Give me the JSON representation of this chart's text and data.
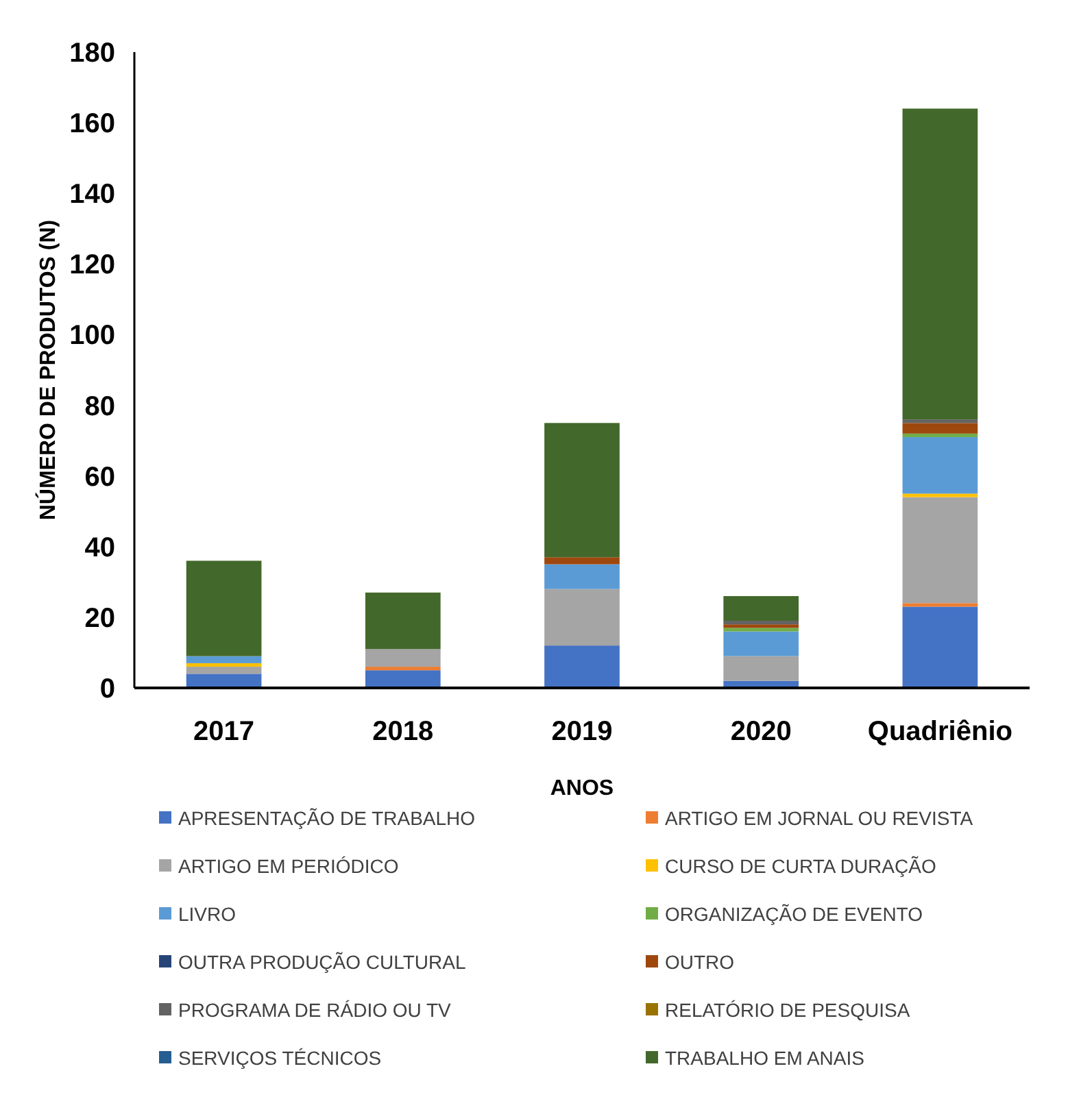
{
  "chart_data": {
    "type": "bar",
    "stacked": true,
    "xlabel": "ANOS",
    "ylabel": "NÚMERO DE PRODUTOS (N)",
    "categories": [
      "2017",
      "2018",
      "2019",
      "2020",
      "Quadriênio"
    ],
    "ylim": [
      0,
      180
    ],
    "yticks": [
      0,
      20,
      40,
      60,
      80,
      100,
      120,
      140,
      160,
      180
    ],
    "grid": false,
    "legend": "bottom",
    "series": [
      {
        "name": "APRESENTAÇÃO DE TRABALHO",
        "color": "#4472c4",
        "values": [
          4,
          5,
          12,
          2,
          23
        ]
      },
      {
        "name": "ARTIGO EM JORNAL OU REVISTA",
        "color": "#ed7d31",
        "values": [
          0,
          1,
          0,
          0,
          1
        ]
      },
      {
        "name": "ARTIGO EM PERIÓDICO",
        "color": "#a5a5a5",
        "values": [
          2,
          5,
          16,
          7,
          30
        ]
      },
      {
        "name": "CURSO DE CURTA DURAÇÃO",
        "color": "#ffc000",
        "values": [
          1,
          0,
          0,
          0,
          1
        ]
      },
      {
        "name": "LIVRO",
        "color": "#5b9bd5",
        "values": [
          2,
          0,
          7,
          7,
          16
        ]
      },
      {
        "name": "ORGANIZAÇÃO DE EVENTO",
        "color": "#70ad47",
        "values": [
          0,
          0,
          0,
          1,
          1
        ]
      },
      {
        "name": "OUTRA PRODUÇÃO CULTURAL",
        "color": "#264478",
        "values": [
          0,
          0,
          0,
          0,
          0
        ]
      },
      {
        "name": "OUTRO",
        "color": "#9e480e",
        "values": [
          0,
          0,
          2,
          1,
          3
        ]
      },
      {
        "name": "PROGRAMA DE RÁDIO OU TV",
        "color": "#636363",
        "values": [
          0,
          0,
          0,
          1,
          1
        ]
      },
      {
        "name": "RELATÓRIO DE PESQUISA",
        "color": "#997300",
        "values": [
          0,
          0,
          0,
          0,
          0
        ]
      },
      {
        "name": "SERVIÇOS TÉCNICOS",
        "color": "#255e91",
        "values": [
          0,
          0,
          0,
          0,
          0
        ]
      },
      {
        "name": "TRABALHO EM ANAIS",
        "color": "#43682b",
        "values": [
          27,
          16,
          38,
          7,
          88
        ]
      }
    ]
  }
}
